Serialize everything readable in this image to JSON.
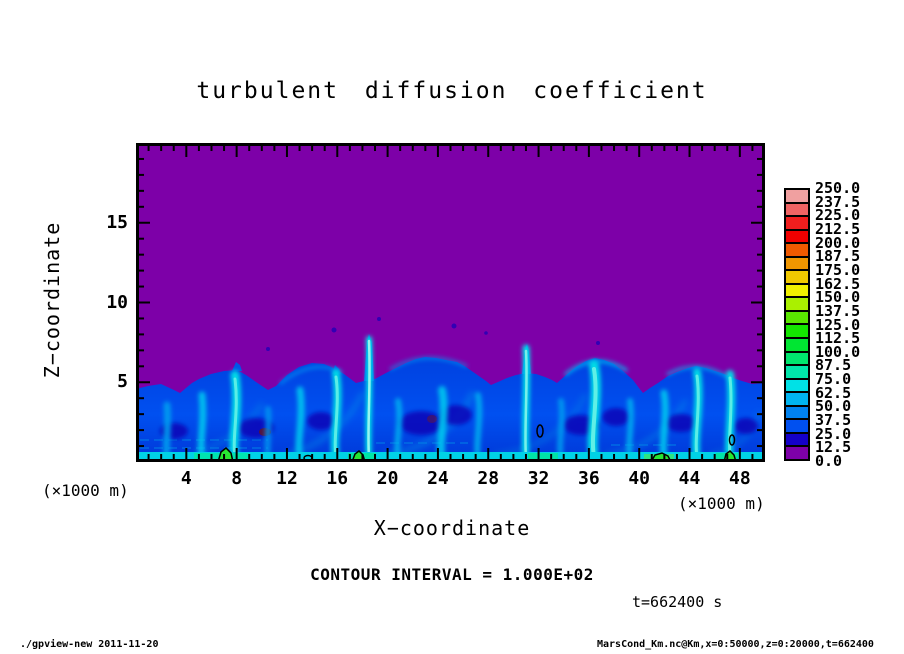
{
  "title": "turbulent diffusion coefficient",
  "axes": {
    "x": {
      "label": "X−coordinate",
      "unit": "(×1000 m)",
      "range": [
        0,
        50
      ],
      "major_ticks": [
        "4",
        "8",
        "12",
        "16",
        "20",
        "24",
        "28",
        "32",
        "36",
        "40",
        "44",
        "48"
      ],
      "minor_tick_step": 1
    },
    "z": {
      "label": "Z−coordinate",
      "unit": "(×1000 m)",
      "range": [
        0,
        20
      ],
      "major_ticks": [
        "5",
        "10",
        "15"
      ],
      "minor_tick_step": 1
    }
  },
  "colorbar": {
    "levels_top_to_bottom": [
      "250.0",
      "237.5",
      "225.0",
      "212.5",
      "200.0",
      "187.5",
      "175.0",
      "162.5",
      "150.0",
      "137.5",
      "125.0",
      "112.5",
      "100.0",
      "87.5",
      "75.0",
      "62.5",
      "50.0",
      "37.5",
      "25.0",
      "12.5",
      "0.0"
    ],
    "cell_colors_top_to_bottom": [
      "#f0a0a0",
      "#f06464",
      "#f01e1e",
      "#f00000",
      "#f05a00",
      "#f09600",
      "#f0c800",
      "#f0f000",
      "#aaf000",
      "#5ae600",
      "#14e600",
      "#00e632",
      "#00e66e",
      "#00e6aa",
      "#00e1e6",
      "#00b4f0",
      "#0082f0",
      "#0050f0",
      "#1400c8",
      "#7d00a8"
    ]
  },
  "annotations": {
    "contour_interval": "CONTOUR INTERVAL = 1.000E+02",
    "time": "t=662400 s"
  },
  "footer": {
    "left": "./gpview-new  2011-11-20",
    "right": "MarsCond_Km.nc@Km,x=0:50000,z=0:20000,t=662400"
  },
  "colors": {
    "background_field": "#7d00a8",
    "mixed_layer_blue": "#0046e6",
    "plume_cyan": "#00dce6",
    "contour_line": "#000000"
  },
  "chart_data": {
    "type": "heatmap",
    "title": "turbulent diffusion coefficient",
    "xlabel": "X-coordinate (×1000 m)",
    "ylabel": "Z-coordinate (×1000 m)",
    "xlim": [
      0,
      50
    ],
    "ylim": [
      0,
      20
    ],
    "x_ticks": [
      4,
      8,
      12,
      16,
      20,
      24,
      28,
      32,
      36,
      40,
      44,
      48
    ],
    "y_ticks": [
      5,
      10,
      15
    ],
    "colorbar_levels": [
      0,
      12.5,
      25,
      37.5,
      50,
      62.5,
      75,
      87.5,
      100,
      112.5,
      125,
      137.5,
      150,
      162.5,
      175,
      187.5,
      200,
      212.5,
      225,
      237.5,
      250
    ],
    "contour_interval": 100.0,
    "time_seconds": 662400,
    "field_summary": "Background (z above ~5-6.5 x1000 m) has value 0-12.5 (purple). Convective mixed layer below ~5 x1000 m with values 25-75 (blue), cyan updraft plumes 62.5-100, a bright near-surface band ~75-100, and isolated spots exceeding 100 (green, enclosed by the 100-contour) near the surface.",
    "boundary_layer_top_profile": {
      "x": [
        0,
        2,
        4,
        6,
        8,
        10,
        12,
        14,
        16,
        18,
        20,
        22,
        24,
        26,
        28,
        30,
        32,
        34,
        36,
        38,
        40,
        42,
        44,
        46,
        48,
        50
      ],
      "z_top": [
        4.6,
        4.8,
        4.7,
        5.4,
        5.7,
        4.7,
        5.3,
        6.2,
        5.7,
        5.0,
        5.7,
        6.4,
        6.4,
        5.8,
        4.9,
        5.4,
        5.5,
        5.8,
        6.5,
        6.2,
        4.4,
        5.1,
        6.0,
        5.8,
        5.1,
        5.0
      ]
    },
    "plume_x_positions": [
      2.5,
      5.2,
      7.9,
      10.5,
      13,
      15.9,
      18.5,
      20.8,
      24.3,
      27.2,
      31,
      33.8,
      36.4,
      39.3,
      42,
      44.6,
      47.2
    ],
    "surface_hotspot_x_positions": [
      7,
      17.6,
      32,
      41.3,
      47
    ]
  }
}
